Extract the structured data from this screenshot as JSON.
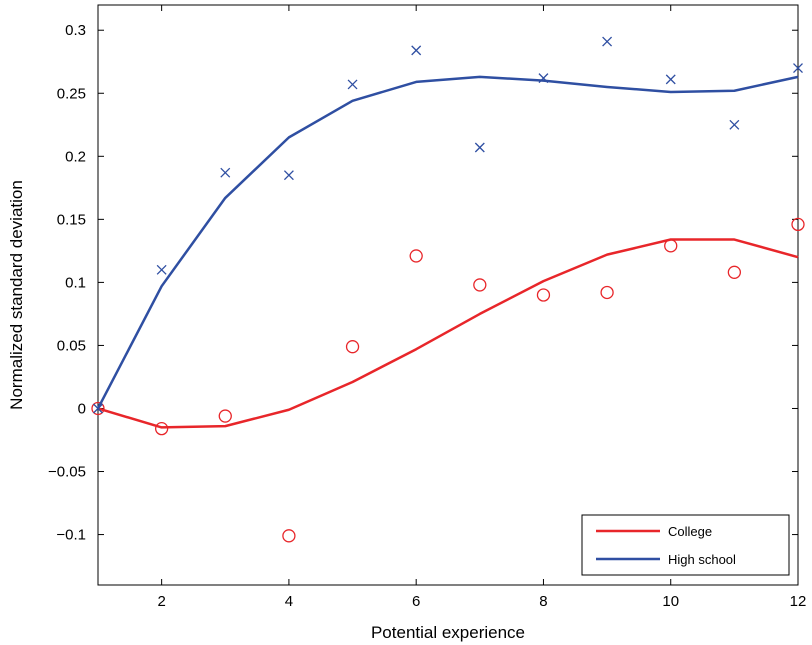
{
  "chart_data": {
    "type": "line",
    "xlabel": "Potential experience",
    "ylabel": "Normalized standard deviation",
    "xlim": [
      1,
      12
    ],
    "ylim": [
      -0.14,
      0.32
    ],
    "xticks": [
      2,
      4,
      6,
      8,
      10,
      12
    ],
    "xtick_labels": [
      "2",
      "4",
      "6",
      "8",
      "10",
      "12"
    ],
    "yticks": [
      -0.1,
      -0.05,
      0,
      0.05,
      0.1,
      0.15,
      0.2,
      0.25,
      0.3
    ],
    "ytick_labels": [
      "−0.1",
      "−0.05",
      "0",
      "0.05",
      "0.1",
      "0.15",
      "0.2",
      "0.25",
      "0.3"
    ],
    "grid": false,
    "legend_position": "bottom-right",
    "series": [
      {
        "name": "College",
        "color": "#e8262a",
        "marker": "circle",
        "x": [
          1,
          2,
          3,
          4,
          5,
          6,
          7,
          8,
          9,
          10,
          11,
          12
        ],
        "fitted": [
          0,
          -0.015,
          -0.014,
          -0.001,
          0.021,
          0.047,
          0.075,
          0.101,
          0.122,
          0.134,
          0.134,
          0.12
        ],
        "points": [
          0,
          -0.016,
          -0.006,
          -0.101,
          0.049,
          0.121,
          0.098,
          0.09,
          0.092,
          0.129,
          0.108,
          0.146
        ]
      },
      {
        "name": "High school",
        "color": "#2f4fa2",
        "marker": "x",
        "x": [
          1,
          2,
          3,
          4,
          5,
          6,
          7,
          8,
          9,
          10,
          11,
          12
        ],
        "fitted": [
          0,
          0.097,
          0.167,
          0.215,
          0.244,
          0.259,
          0.263,
          0.26,
          0.255,
          0.251,
          0.252,
          0.263
        ],
        "points": [
          0,
          0.11,
          0.187,
          0.185,
          0.257,
          0.284,
          0.207,
          0.262,
          0.291,
          0.261,
          0.225,
          0.27
        ]
      }
    ]
  }
}
